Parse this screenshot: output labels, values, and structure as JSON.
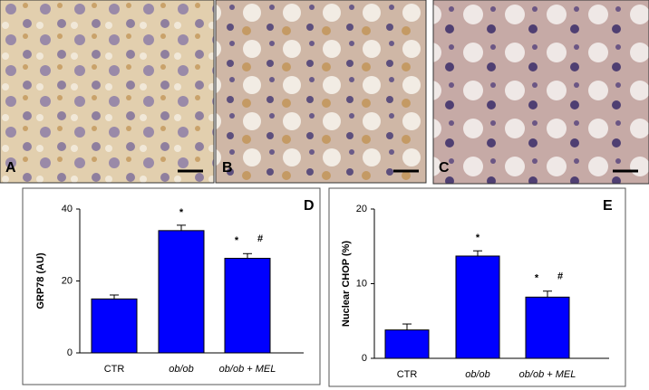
{
  "panels": [
    "A",
    "B",
    "C"
  ],
  "chart_data": [
    {
      "type": "bar",
      "panel": "D",
      "ylabel": "GRP78 (AU)",
      "categories": [
        "CTR",
        "ob/ob",
        "ob/ob + MEL"
      ],
      "values": [
        15,
        34,
        26.3
      ],
      "errors": [
        1.1,
        1.5,
        1.3
      ],
      "star_marks": [
        null,
        "*",
        "*"
      ],
      "hash_marks": [
        null,
        null,
        "#"
      ],
      "color": "#0000ff",
      "ylim": [
        0,
        40
      ],
      "yticks": [
        0,
        20,
        40
      ]
    },
    {
      "type": "bar",
      "panel": "E",
      "ylabel": "Nuclear CHOP (%)",
      "categories": [
        "CTR",
        "ob/ob",
        "ob/ob + MEL"
      ],
      "values": [
        3.8,
        13.7,
        8.2
      ],
      "errors": [
        0.8,
        0.7,
        0.8
      ],
      "star_marks": [
        null,
        "*",
        "*"
      ],
      "hash_marks": [
        null,
        null,
        "#"
      ],
      "color": "#0000ff",
      "ylim": [
        0,
        20
      ],
      "yticks": [
        0,
        10,
        20
      ]
    }
  ]
}
